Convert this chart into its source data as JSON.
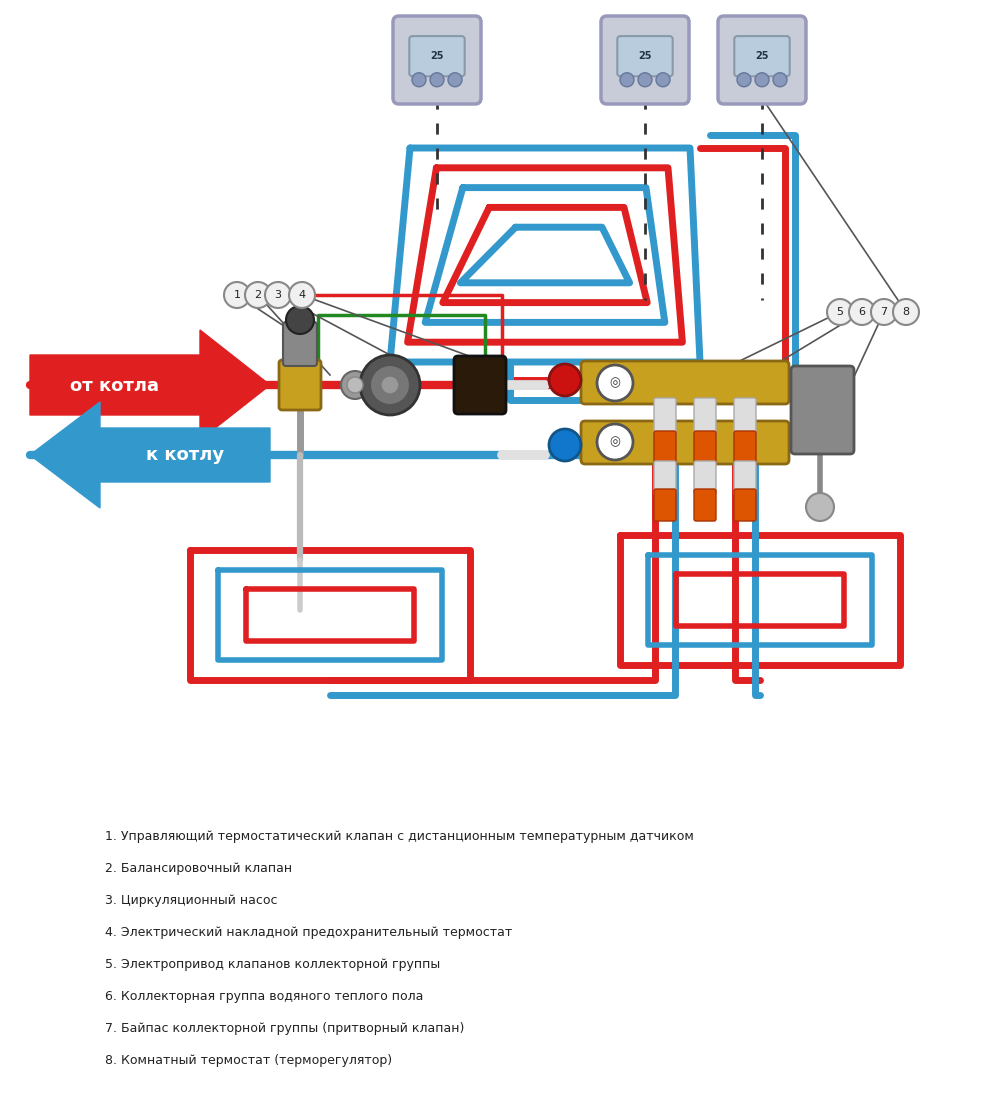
{
  "bg_color": "#ffffff",
  "red_color": "#e02020",
  "blue_color": "#3399cc",
  "green_color": "#228822",
  "gold_color": "#c8a020",
  "gray_color": "#aaaaaa",
  "legend_items": [
    "1. Управляющий термостатический клапан с дистанционным температурным датчиком",
    "2. Балансировочный клапан",
    "3. Циркуляционный насос",
    "4. Электрический накладной предохранительный термостат",
    "5. Электропривод клапанов коллекторной группы",
    "6. Коллекторная группа водяного теплого пола",
    "7. Байпас коллекторной группы (притворный клапан)",
    "8. Комнатный термостат (терморегулятор)"
  ],
  "label_ot_kotla": "от котла",
  "label_k_kotlu": "к котлу"
}
